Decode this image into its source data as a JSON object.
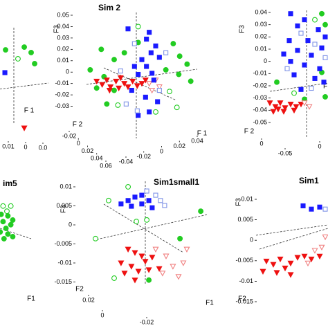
{
  "chart_data": [
    {
      "type": "scatter",
      "xlabel": "F 1",
      "xlim": [
        -0.05,
        0.05
      ],
      "ylim": [
        -0.05,
        0.05
      ],
      "xticks": [
        0.01,
        0,
        {
          "value": -0.01,
          "label": "0.0"
        }
      ],
      "series": [
        {
          "color": "#22cc22",
          "marker": "circle",
          "filled": true,
          "x": [
            -0.0014,
            0.0179,
            0.025,
            0.0286
          ],
          "values": [
            0.0211,
            0.0233,
            0.0189,
            0.01
          ]
        },
        {
          "color": "#22cc22",
          "marker": "circle",
          "filled": false,
          "x": [
            0.0114
          ],
          "values": [
            0.0139
          ]
        },
        {
          "color": "#1a1aff",
          "marker": "square",
          "filled": true,
          "x": [
            -0.0021
          ],
          "values": [
            0.0028
          ]
        },
        {
          "color": "#ee1111",
          "marker": "triangle",
          "filled": true,
          "x": [
            0.0179
          ],
          "values": [
            -0.0417
          ]
        }
      ]
    },
    {
      "type": "scatter",
      "title": "Sim 2",
      "ylabel": "F3",
      "xlabel": "F 1",
      "zlabel": "F 2",
      "xlim": [
        -0.06,
        0.06
      ],
      "ylim": [
        -0.04,
        0.05
      ],
      "yticks": [
        0.05,
        0.04,
        0.03,
        0.02,
        0.01,
        0,
        -0.01,
        -0.02,
        -0.03
      ],
      "xticks": [
        -0.04,
        -0.02,
        0,
        0.02,
        0.04
      ],
      "zticks": [
        -0.02,
        0,
        0.02,
        0.04,
        0.06
      ],
      "series": [
        {
          "color": "#22cc22",
          "marker": "circle",
          "filled": true,
          "x": [
            -0.044,
            -0.03,
            -0.019,
            -0.004,
            0.034,
            0.041,
            -0.041,
            0.026,
            0.04,
            -0.049,
            -0.03,
            0.049,
            -0.038,
            0.053,
            -0.056
          ],
          "values": [
            0.02,
            0.011,
            0.017,
            0.026,
            0.025,
            0.014,
            -0.004,
            0.002,
            -0.002,
            -0.014,
            -0.016,
            0.007,
            -0.028,
            -0.008,
            0.002
          ]
        },
        {
          "color": "#22cc22",
          "marker": "circle",
          "filled": false,
          "x": [
            -0.004,
            0.03,
            0.038,
            -0.026,
            0.015
          ],
          "values": [
            0.04,
            -0.017,
            -0.031,
            -0.029,
            -0.035
          ]
        },
        {
          "color": "#ee1111",
          "marker": "triangle",
          "filled": true,
          "x": [
            -0.049,
            -0.043,
            -0.038,
            -0.034,
            -0.028,
            -0.025,
            -0.019,
            -0.015,
            -0.01,
            -0.005,
            0,
            -0.023,
            -0.035,
            0.004
          ],
          "values": [
            -0.008,
            -0.011,
            -0.007,
            -0.013,
            -0.008,
            -0.014,
            -0.01,
            -0.013,
            -0.008,
            -0.012,
            -0.01,
            -0.005,
            -0.016,
            -0.007
          ]
        },
        {
          "color": "#f08080",
          "marker": "triangle",
          "filled": false,
          "x": [
            0.008,
            0.015,
            0.019,
            0.011
          ],
          "values": [
            -0.01,
            -0.007,
            -0.013,
            -0.016
          ]
        },
        {
          "color": "#1a1aff",
          "marker": "square",
          "filled": true,
          "x": [
            -0.015,
            0.008,
            0.005,
            0.015,
            0.01,
            0,
            0.019,
            0.005,
            0.011,
            -0.004,
            0.013,
            -0.011,
            0.004,
            0.017,
            -0.004,
            0.008,
            -0.008
          ],
          "values": [
            0.038,
            0.035,
            0.029,
            0.023,
            0.017,
            0.011,
            0.013,
            0.005,
            -0.001,
            -0.002,
            -0.007,
            -0.016,
            -0.022,
            -0.026,
            -0.038,
            -0.035,
            0.005
          ]
        },
        {
          "color": "#7f93e6",
          "marker": "square",
          "filled": false,
          "x": [
            -0.008,
            0.026,
            -0.017,
            -0.005,
            0.019,
            -0.023
          ],
          "values": [
            0.025,
            0.017,
            -0.028,
            -0.034,
            -0.016,
            0.001
          ]
        }
      ]
    },
    {
      "type": "scatter",
      "ylabel": "F3",
      "xlabel": "F",
      "zlabel": "F 2",
      "xlim": [
        -0.06,
        0.06
      ],
      "ylim": [
        -0.05,
        0.04
      ],
      "yticks": [
        0.04,
        0.03,
        0.02,
        0.01,
        0,
        -0.01,
        -0.02,
        -0.03,
        -0.04,
        -0.05
      ],
      "xticks": [
        -0.05,
        0
      ],
      "zticks": [
        0
      ],
      "series": [
        {
          "color": "#22cc22",
          "marker": "circle",
          "filled": true,
          "x": [
            0.02,
            0.025,
            -0.045,
            0.02,
            -0.005,
            0.025
          ],
          "values": [
            0.039,
            0.03,
            -0.017,
            -0.009,
            -0.031,
            -0.029
          ]
        },
        {
          "color": "#22cc22",
          "marker": "circle",
          "filled": false,
          "x": [
            -0.02,
            0.01
          ],
          "values": [
            -0.026,
            0.034
          ]
        },
        {
          "color": "#ee1111",
          "marker": "triangle",
          "filled": true,
          "x": [
            -0.055,
            -0.047,
            -0.04,
            -0.033,
            -0.025,
            -0.017,
            -0.05,
            -0.035,
            -0.02,
            -0.01,
            -0.043
          ],
          "values": [
            -0.034,
            -0.037,
            -0.034,
            -0.038,
            -0.035,
            -0.037,
            -0.041,
            -0.041,
            -0.04,
            -0.035,
            -0.039
          ]
        },
        {
          "color": "#f08080",
          "marker": "triangle",
          "filled": false,
          "x": [
            -0.005,
            0.002
          ],
          "values": [
            -0.034,
            -0.037
          ]
        },
        {
          "color": "#1a1aff",
          "marker": "square",
          "filled": true,
          "x": [
            -0.025,
            -0.005,
            -0.015,
            0.015,
            -0.027,
            0,
            0.02,
            -0.015,
            0.005,
            -0.025,
            -0.005,
            0.017,
            -0.02,
            0.01,
            0.025,
            -0.035,
            -0.01,
            0.023
          ],
          "values": [
            0.039,
            0.034,
            0.029,
            0.026,
            0.017,
            0.017,
            0.011,
            0.009,
            0.005,
            0,
            -0.003,
            -0.006,
            -0.011,
            -0.014,
            0.02,
            0.006,
            -0.023,
            -0.017
          ]
        },
        {
          "color": "#7f93e6",
          "marker": "square",
          "filled": false,
          "x": [
            -0.01,
            0.01,
            0.025,
            -0.03,
            0.005
          ],
          "values": [
            0.023,
            0.014,
            0.003,
            -0.006,
            -0.022
          ]
        }
      ]
    },
    {
      "type": "scatter",
      "title": "Sim1",
      "ylabel": "F3",
      "zlabel": "F2",
      "xlim": [
        -0.04,
        0.04
      ],
      "ylim": [
        -0.015,
        0.01
      ],
      "yticks": [
        0.01,
        0.005,
        0,
        -0.005,
        -0.01,
        -0.015
      ],
      "series": [
        {
          "color": "#ee1111",
          "marker": "triangle",
          "filled": true,
          "x": [
            -0.0325,
            -0.0275,
            -0.0225,
            -0.019,
            -0.015,
            -0.01,
            -0.005,
            0,
            -0.025,
            -0.015,
            -0.035,
            0.006
          ],
          "values": [
            -0.0051,
            -0.0059,
            -0.0046,
            -0.0068,
            -0.0056,
            -0.0042,
            -0.0039,
            -0.0046,
            -0.0079,
            -0.0084,
            -0.0076,
            -0.0039
          ]
        },
        {
          "color": "#f08080",
          "marker": "triangle",
          "filled": false,
          "x": [
            0.0025,
            0.0075,
            -0.0025,
            0.01
          ],
          "values": [
            -0.0025,
            -0.0017,
            -0.0056,
            0.0008
          ]
        },
        {
          "color": "#1a1aff",
          "marker": "square",
          "filled": true,
          "x": [
            -0.006,
            0.006,
            0
          ],
          "values": [
            0.0084,
            0.0081,
            0.0076
          ]
        },
        {
          "color": "#7f93e6",
          "marker": "square",
          "filled": false,
          "x": [
            0.01
          ],
          "values": [
            0.0076
          ]
        }
      ]
    },
    {
      "type": "scatter",
      "title": "im5",
      "xlabel": "F1",
      "xlim": [
        -0.05,
        0.05
      ],
      "ylim": [
        -0.01,
        0.01
      ],
      "series": [
        {
          "color": "#22cc22",
          "marker": "circle",
          "filled": false,
          "x": [
            -0.004,
            0.004,
            0.0
          ],
          "values": [
            0.0063,
            0.0063,
            0.0053
          ]
        },
        {
          "color": "#22cc22",
          "marker": "circle",
          "filled": true,
          "x": [
            -0.006,
            0.001,
            0.006,
            -0.004,
            0.004,
            -0.001,
            -0.007,
            0.001,
            0.006,
            -0.003
          ],
          "values": [
            0.0047,
            0.0044,
            0.0036,
            0.0033,
            0.0027,
            0.002,
            0.0013,
            0.0009,
            0.0004,
            0
          ]
        }
      ]
    },
    {
      "type": "scatter",
      "title": "Sim1small1",
      "ylabel": "F3",
      "xlabel": "F1",
      "zlabel": "F2",
      "xlim": [
        -0.03,
        0.03
      ],
      "ylim": [
        -0.015,
        0.01
      ],
      "yticks": [
        0.01,
        0.005,
        0,
        -0.005,
        -0.01,
        -0.015
      ],
      "xticks": [
        -0.02
      ],
      "zticks": [
        0.02,
        0
      ],
      "series": [
        {
          "color": "#22cc22",
          "marker": "circle",
          "filled": false,
          "x": [
            -0.0083,
            -0.0177,
            -0.0043,
            -0.024,
            0.0007,
            -0.015
          ],
          "values": [
            0.01,
            0.0064,
            0.0009,
            -0.0036,
            0.0013,
            -0.014
          ]
        },
        {
          "color": "#22cc22",
          "marker": "circle",
          "filled": true,
          "x": [
            0.0267,
            0.0167,
            0.0017
          ],
          "values": [
            0.0036,
            -0.0036,
            -0.0145
          ]
        },
        {
          "color": "#ee1111",
          "marker": "triangle",
          "filled": true,
          "x": [
            -0.0083,
            -0.005,
            -0.0017,
            -0.0117,
            -0.0067,
            0,
            0.0033,
            -0.01,
            -0.0033,
            0.0017,
            0.0067,
            -0.005
          ],
          "values": [
            -0.0064,
            -0.0073,
            -0.0082,
            -0.01,
            -0.0109,
            -0.0096,
            -0.0085,
            -0.0127,
            -0.0122,
            -0.0118,
            -0.0115,
            -0.0145
          ]
        },
        {
          "color": "#f08080",
          "marker": "triangle",
          "filled": false,
          "x": [
            0.005,
            0.01,
            0.0133,
            0.0183,
            0.0083,
            0.016,
            0.02
          ],
          "values": [
            -0.0064,
            -0.0082,
            -0.0109,
            -0.01,
            -0.0127,
            -0.0136,
            -0.0064
          ]
        },
        {
          "color": "#1a1aff",
          "marker": "square",
          "filled": true,
          "x": [
            -0.0083,
            -0.005,
            -0.0017,
            0.0017,
            -0.0017,
            -0.0067,
            0.0033,
            -0.0117
          ],
          "values": [
            0.0064,
            0.0073,
            0.0078,
            0.0064,
            0.0055,
            0.0049,
            0.0045,
            0.0055
          ]
        },
        {
          "color": "#7f93e6",
          "marker": "square",
          "filled": false,
          "x": [
            0.005,
            0.0073,
            0.0093,
            0.0007
          ],
          "values": [
            0.0078,
            0.0064,
            0.0051,
            0.0089
          ]
        }
      ]
    }
  ]
}
